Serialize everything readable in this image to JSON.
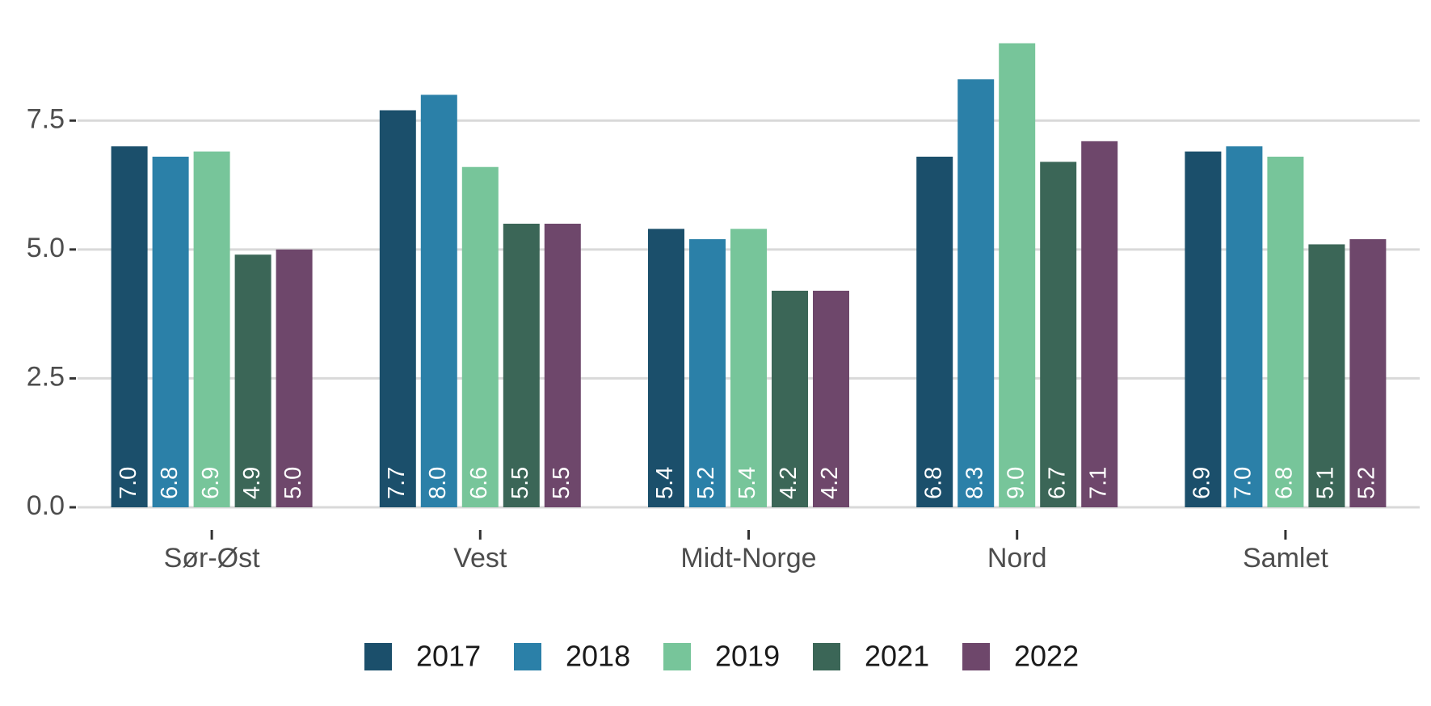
{
  "chart_data": {
    "type": "bar",
    "categories": [
      "Sør-Øst",
      "Vest",
      "Midt-Norge",
      "Nord",
      "Samlet"
    ],
    "series": [
      {
        "name": "2017",
        "color": "#1b4f6b",
        "values": [
          7.0,
          7.7,
          5.4,
          6.8,
          6.9
        ],
        "value_labels": [
          "7.0",
          "7.7",
          "5.4",
          "6.8",
          "6.9"
        ]
      },
      {
        "name": "2018",
        "color": "#2b80a8",
        "values": [
          6.8,
          8.0,
          5.2,
          8.3,
          7.0
        ],
        "value_labels": [
          "6.8",
          "8.0",
          "5.2",
          "8.3",
          "7.0"
        ]
      },
      {
        "name": "2019",
        "color": "#77c59a",
        "values": [
          6.9,
          6.6,
          5.4,
          9.0,
          6.8
        ],
        "value_labels": [
          "6.9",
          "6.6",
          "5.4",
          "9.0",
          "6.8"
        ]
      },
      {
        "name": "2021",
        "color": "#3b6657",
        "values": [
          4.9,
          5.5,
          4.2,
          6.7,
          5.1
        ],
        "value_labels": [
          "4.9",
          "5.5",
          "4.2",
          "6.7",
          "5.1"
        ]
      },
      {
        "name": "2022",
        "color": "#6e476b",
        "values": [
          5.0,
          5.5,
          4.2,
          7.1,
          5.2
        ],
        "value_labels": [
          "5.0",
          "5.5",
          "4.2",
          "7.1",
          "5.2"
        ]
      }
    ],
    "ylim": [
      0,
      9.4
    ],
    "yticks": [
      {
        "value": 0,
        "label": "0.0"
      },
      {
        "value": 2.5,
        "label": "2.5"
      },
      {
        "value": 5,
        "label": "5.0"
      },
      {
        "value": 7.5,
        "label": "7.5"
      }
    ],
    "grid": true,
    "legend": "bottom"
  }
}
